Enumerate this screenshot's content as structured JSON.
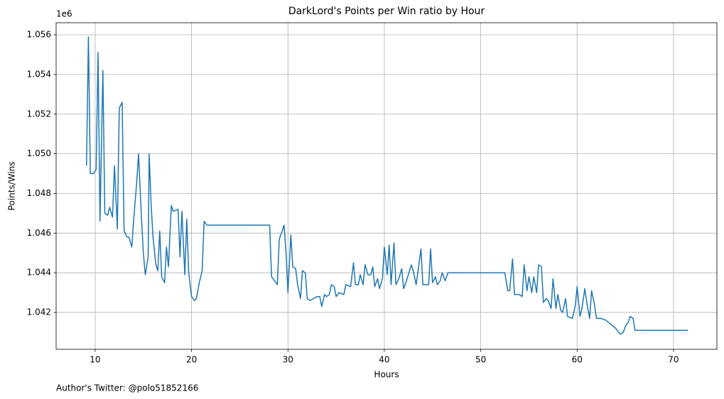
{
  "chart_data": {
    "type": "line",
    "title": "DarkLord's Points per Win ratio by Hour",
    "xlabel": "Hours",
    "ylabel": "Points/Wins",
    "y_offset_label": "1e6",
    "footnote": "Author's Twitter: @polo51852166",
    "color": "#1f77b4",
    "grid": true,
    "xlim": [
      5.95,
      74.5
    ],
    "ylim": [
      1.04014,
      1.05661
    ],
    "xticks": [
      10,
      20,
      30,
      40,
      50,
      60,
      70
    ],
    "yticks": [
      1.042,
      1.044,
      1.046,
      1.048,
      {
        "value": 1.05,
        "label": "1.050"
      },
      1.052,
      1.054,
      1.056
    ],
    "x": [
      9.1,
      9.3,
      9.5,
      9.8,
      10.1,
      10.3,
      10.5,
      10.8,
      11.0,
      11.3,
      11.5,
      11.8,
      12.0,
      12.3,
      12.5,
      12.8,
      13.0,
      13.3,
      13.5,
      13.8,
      14.0,
      14.3,
      14.5,
      14.8,
      15.0,
      15.2,
      15.5,
      15.6,
      15.8,
      16.0,
      16.3,
      16.5,
      16.7,
      16.9,
      17.2,
      17.4,
      17.6,
      17.9,
      18.1,
      18.6,
      18.8,
      19.0,
      19.3,
      19.5,
      19.7,
      20.0,
      20.3,
      20.5,
      20.8,
      21.1,
      21.3,
      21.6,
      28.1,
      28.3,
      28.6,
      28.9,
      29.1,
      29.4,
      29.6,
      29.8,
      30.0,
      30.3,
      30.5,
      30.8,
      31.0,
      31.3,
      31.5,
      31.8,
      32.0,
      32.3,
      33.0,
      33.3,
      33.5,
      33.8,
      34.0,
      34.3,
      34.5,
      34.8,
      35.0,
      35.3,
      35.8,
      36.0,
      36.5,
      36.8,
      37.0,
      37.3,
      37.5,
      37.8,
      38.0,
      38.3,
      38.6,
      38.8,
      39.0,
      39.3,
      39.5,
      39.8,
      40.0,
      40.3,
      40.5,
      40.7,
      41.0,
      41.2,
      41.5,
      41.8,
      42.0,
      42.3,
      42.8,
      43.0,
      43.3,
      43.8,
      44.0,
      44.6,
      44.8,
      45.0,
      45.3,
      45.5,
      45.8,
      46.0,
      46.3,
      46.6,
      52.5,
      52.8,
      53.0,
      53.3,
      53.5,
      54.0,
      54.3,
      54.5,
      54.8,
      55.0,
      55.3,
      55.5,
      55.8,
      56.0,
      56.3,
      56.5,
      56.8,
      57.0,
      57.3,
      57.5,
      57.8,
      58.0,
      58.3,
      58.5,
      58.8,
      59.0,
      59.5,
      59.8,
      60.0,
      60.3,
      60.5,
      60.8,
      61.0,
      61.3,
      61.5,
      61.8,
      62.0,
      62.5,
      63.0,
      63.5,
      64.0,
      64.3,
      64.5,
      64.8,
      65.0,
      65.3,
      65.5,
      65.8,
      66.0,
      71.5
    ],
    "values": [
      1.0494,
      1.0559,
      1.049,
      1.049,
      1.0492,
      1.0551,
      1.0466,
      1.0542,
      1.047,
      1.0469,
      1.0473,
      1.0468,
      1.0494,
      1.0462,
      1.0523,
      1.0526,
      1.0461,
      1.0458,
      1.0458,
      1.0453,
      1.0467,
      1.0485,
      1.05,
      1.0468,
      1.045,
      1.0439,
      1.0448,
      1.05,
      1.0475,
      1.0458,
      1.0444,
      1.0441,
      1.0461,
      1.0438,
      1.0435,
      1.0453,
      1.0443,
      1.0474,
      1.0471,
      1.0472,
      1.0448,
      1.0471,
      1.0439,
      1.0467,
      1.044,
      1.0428,
      1.0426,
      1.0427,
      1.0435,
      1.0441,
      1.0466,
      1.0464,
      1.0464,
      1.0438,
      1.0436,
      1.0434,
      1.0457,
      1.0461,
      1.0464,
      1.045,
      1.043,
      1.0459,
      1.0443,
      1.0442,
      1.0434,
      1.0427,
      1.0441,
      1.044,
      1.0427,
      1.0426,
      1.0428,
      1.0428,
      1.0423,
      1.0429,
      1.0428,
      1.0429,
      1.0434,
      1.0433,
      1.0428,
      1.043,
      1.0429,
      1.0434,
      1.0433,
      1.0445,
      1.0434,
      1.0434,
      1.0439,
      1.0434,
      1.0444,
      1.0439,
      1.0439,
      1.0443,
      1.0433,
      1.0437,
      1.0432,
      1.0437,
      1.0453,
      1.0439,
      1.0454,
      1.0434,
      1.0455,
      1.0434,
      1.0437,
      1.0442,
      1.0432,
      1.0436,
      1.0444,
      1.0441,
      1.0434,
      1.0452,
      1.0434,
      1.0434,
      1.0452,
      1.0435,
      1.0438,
      1.0434,
      1.0436,
      1.044,
      1.0436,
      1.044,
      1.044,
      1.0431,
      1.0431,
      1.0447,
      1.0429,
      1.0429,
      1.0428,
      1.0444,
      1.0431,
      1.0438,
      1.043,
      1.0438,
      1.043,
      1.0444,
      1.0443,
      1.0425,
      1.0427,
      1.0426,
      1.0422,
      1.0437,
      1.0422,
      1.0429,
      1.0421,
      1.042,
      1.0427,
      1.0418,
      1.0417,
      1.0423,
      1.0433,
      1.0418,
      1.0422,
      1.0432,
      1.0425,
      1.0417,
      1.0431,
      1.0424,
      1.0417,
      1.0417,
      1.0416,
      1.0414,
      1.0412,
      1.041,
      1.0409,
      1.041,
      1.0413,
      1.0415,
      1.0418,
      1.0417,
      1.0411,
      1.0411
    ]
  }
}
